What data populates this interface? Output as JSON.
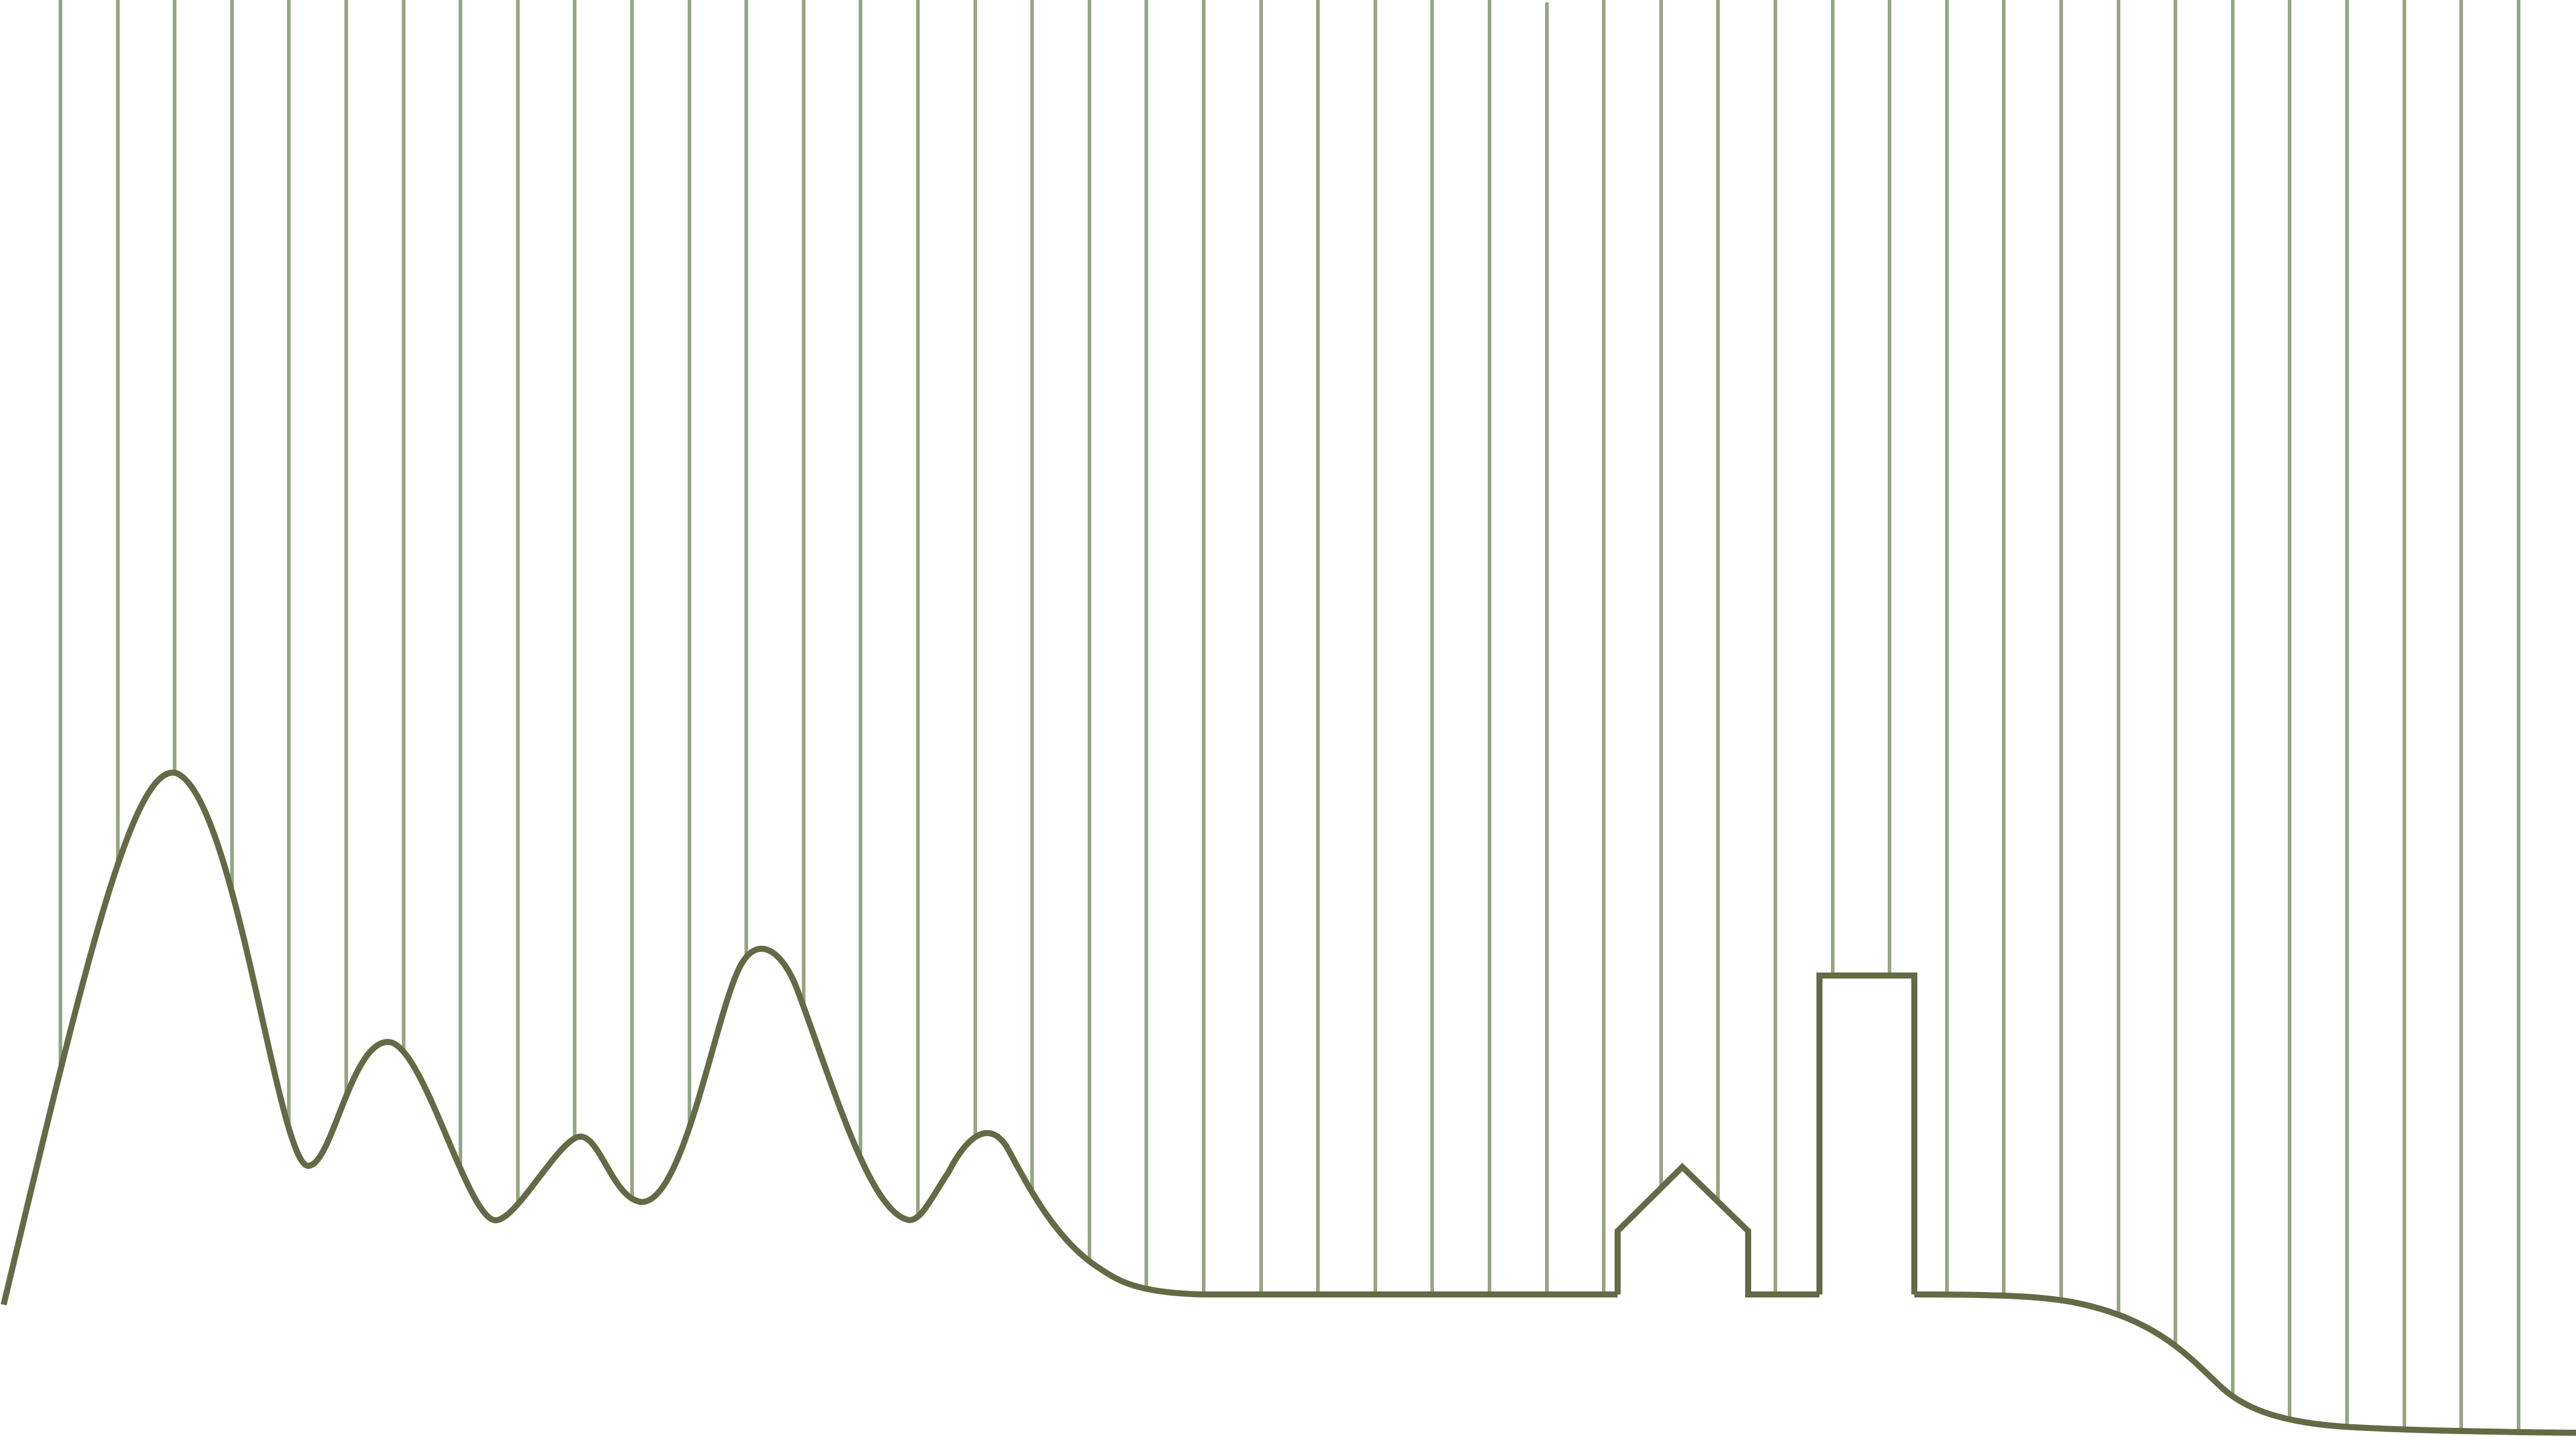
{
  "colors": {
    "background": "#ffffff",
    "vertical_lines": "#98a585",
    "terrain_outline": "#636a45"
  },
  "illustration": {
    "elements": [
      "vertical-lines",
      "hills-outline",
      "house-outline",
      "tower-outline"
    ]
  }
}
